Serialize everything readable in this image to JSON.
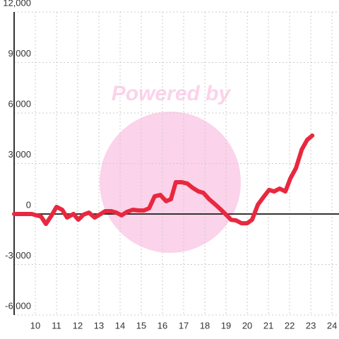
{
  "chart_data": {
    "type": "line",
    "watermark": "Powered by",
    "x": [
      9,
      9.83,
      10.27,
      10.5,
      10.77,
      11,
      11.27,
      11.5,
      11.8,
      12.03,
      12.27,
      12.53,
      12.8,
      13.03,
      13.3,
      13.57,
      13.83,
      14.07,
      14.33,
      14.6,
      14.87,
      15.13,
      15.37,
      15.63,
      15.9,
      16.17,
      16.4,
      16.63,
      16.9,
      17.17,
      17.43,
      17.7,
      17.93,
      18.2,
      18.47,
      18.73,
      18.97,
      19.23,
      19.47,
      19.73,
      20,
      20.23,
      20.5,
      20.77,
      21.03,
      21.27,
      21.53,
      21.8,
      22.03,
      22.3,
      22.57,
      22.83,
      23.07
    ],
    "series": [
      {
        "color": "#e8283f",
        "values": [
          0,
          0,
          -150,
          -590,
          -80,
          420,
          250,
          -210,
          0,
          -340,
          -40,
          80,
          -210,
          -40,
          170,
          170,
          80,
          -80,
          130,
          250,
          210,
          210,
          340,
          1050,
          1130,
          760,
          880,
          1890,
          1890,
          1810,
          1550,
          1340,
          1260,
          880,
          590,
          290,
          0,
          -340,
          -380,
          -550,
          -550,
          -340,
          550,
          1010,
          1430,
          1340,
          1510,
          1340,
          2100,
          2730,
          3820,
          4410,
          4660
        ]
      }
    ],
    "xlim": [
      9,
      24.33
    ],
    "xticks": [
      10,
      11,
      12,
      13,
      14,
      15,
      16,
      17,
      18,
      19,
      20,
      21,
      22,
      23,
      24
    ],
    "ylim": [
      -6000,
      12000
    ],
    "yticks": [
      {
        "value": -6000,
        "label": "-6,000"
      },
      {
        "value": -3000,
        "label": "-3,000"
      },
      0,
      {
        "value": 3000,
        "label": "3,000"
      },
      {
        "value": 6000,
        "label": "6,000"
      },
      {
        "value": 9000,
        "label": "9,000"
      },
      {
        "value": 12000,
        "label": "12,000"
      }
    ],
    "grid": true
  }
}
